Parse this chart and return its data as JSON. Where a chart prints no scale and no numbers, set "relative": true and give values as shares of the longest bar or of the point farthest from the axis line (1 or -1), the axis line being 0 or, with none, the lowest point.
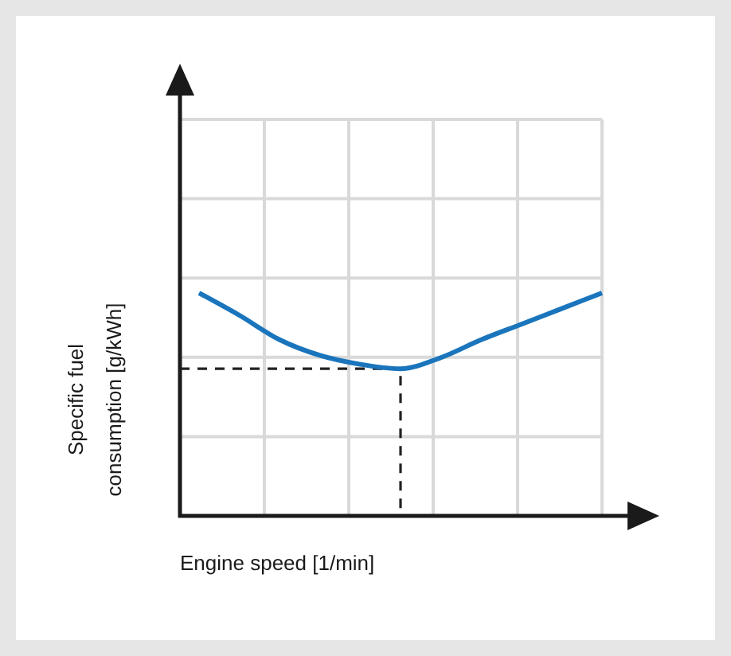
{
  "chart_data": {
    "type": "line",
    "relative": true,
    "xlabel": "Engine speed [1/min]",
    "ylabel": "Specific fuel consumption [g/kWh]",
    "categories": [
      null,
      null,
      null,
      null,
      null,
      null,
      null,
      null,
      null,
      null,
      null
    ],
    "series": [
      {
        "color": "#1a75bc",
        "values": [
          1.0,
          0.9,
          0.79,
          0.72,
          0.68,
          0.66,
          0.71,
          0.79,
          0.86,
          0.93,
          1.0
        ]
      }
    ],
    "ref_lines": [
      {
        "axis": "y",
        "value": 0.66,
        "color": "#222222",
        "line_style": "dashed"
      }
    ],
    "grid": true,
    "marker": "none",
    "line_style": "solid"
  }
}
